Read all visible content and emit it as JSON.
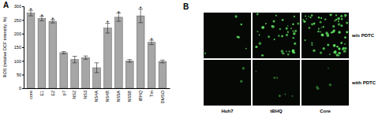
{
  "chart_data": {
    "type": "bar",
    "panel_label": "A",
    "y_label": "ROS (relative DCF intensity, %)",
    "categories": [
      "core",
      "E1",
      "E2",
      "p7",
      "NS2",
      "NS3",
      "NS4A",
      "NS4B",
      "NS5A",
      "NS5B",
      "tBHQ",
      "Tm",
      "DMSO"
    ],
    "values": [
      275,
      255,
      245,
      130,
      105,
      112,
      75,
      220,
      260,
      100,
      265,
      168,
      98
    ],
    "errors": [
      10,
      8,
      6,
      4,
      12,
      6,
      18,
      18,
      15,
      5,
      25,
      8,
      5
    ],
    "significance": [
      "*",
      "*",
      "*",
      null,
      null,
      null,
      null,
      "*",
      "*",
      null,
      "*",
      "*",
      null
    ],
    "color": "#a6a6a6",
    "ylim": [
      0,
      300
    ],
    "yticks": [
      0,
      50,
      100,
      150,
      200,
      250,
      300
    ]
  },
  "panel_b": {
    "panel_label": "B",
    "columns": [
      "Huh7",
      "tBHQ",
      "Core"
    ],
    "rows": [
      "w/o PDTC",
      "with PDTC"
    ]
  }
}
